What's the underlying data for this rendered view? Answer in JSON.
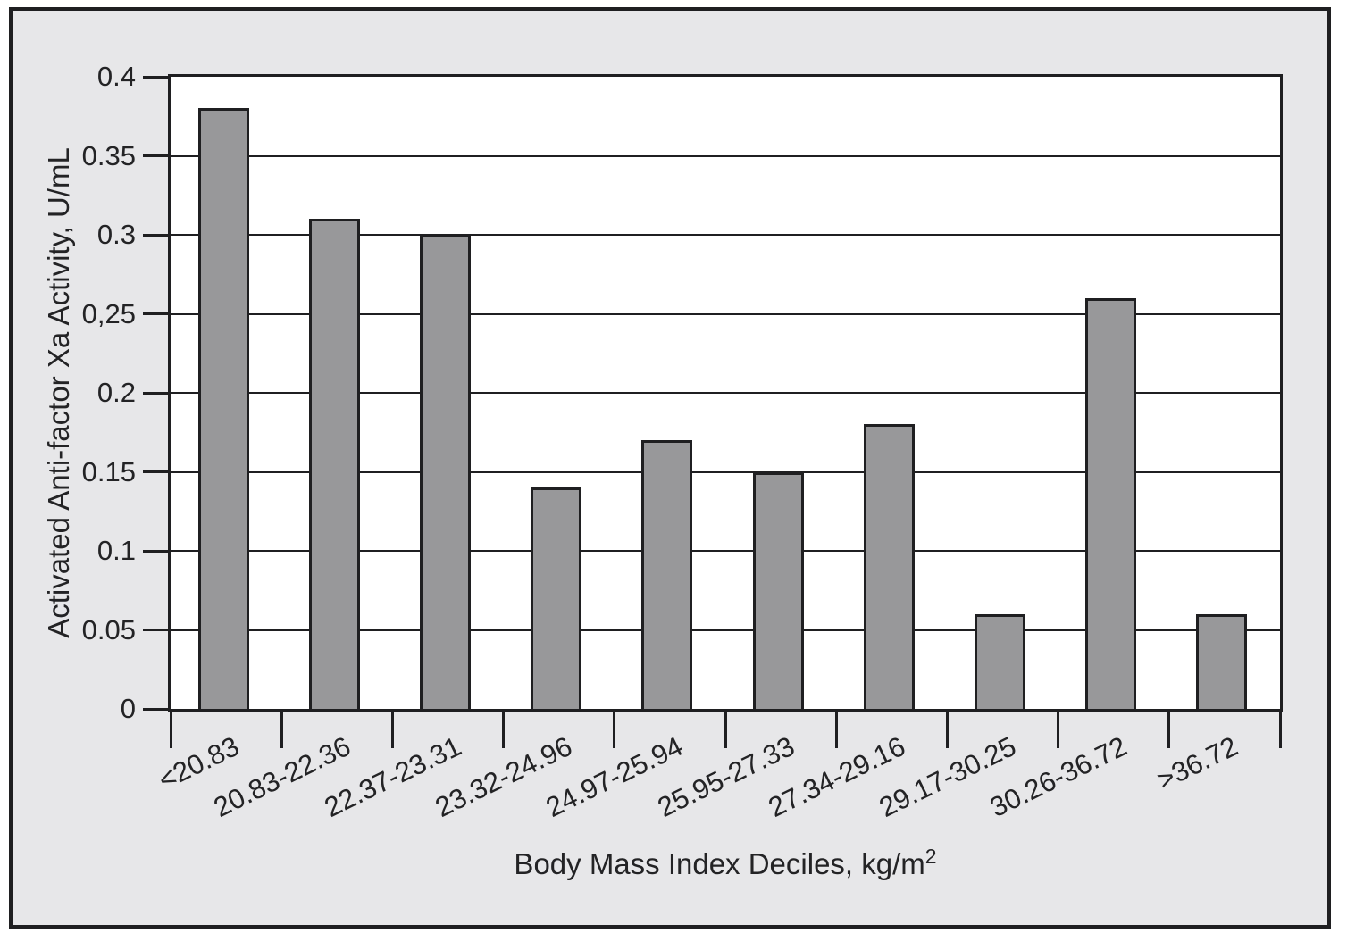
{
  "chart_data": {
    "type": "bar",
    "title": "",
    "categories": [
      "<20.83",
      "20.83-22.36",
      "22.37-23.31",
      "23.32-24.96",
      "24.97-25.94",
      "25.95-27.33",
      "27.34-29.16",
      "29.17-30.25",
      "30.26-36.72",
      ">36.72"
    ],
    "values": [
      0.38,
      0.31,
      0.3,
      0.14,
      0.17,
      0.15,
      0.18,
      0.06,
      0.26,
      0.06
    ],
    "ylabel": "Activated Anti-factor Xa Activity, U/mL",
    "xlabel_main": "Body Mass Index Deciles, kg/m",
    "xlabel_sup": "2",
    "ylim": [
      0,
      0.4
    ],
    "yticks": [
      {
        "value": 0,
        "label": "0"
      },
      {
        "value": 0.05,
        "label": "0.05"
      },
      {
        "value": 0.1,
        "label": "0.1"
      },
      {
        "value": 0.15,
        "label": "0.15"
      },
      {
        "value": 0.2,
        "label": "0.2"
      },
      {
        "value": 0.25,
        "label": "0,25"
      },
      {
        "value": 0.3,
        "label": "0.3"
      },
      {
        "value": 0.35,
        "label": "0.35"
      },
      {
        "value": 0.4,
        "label": "0.4"
      }
    ],
    "grid": "horizontal",
    "legend": "none",
    "colors": {
      "bar_fill": "#98989a",
      "bar_border": "#1f1f21",
      "figure_bg": "#e7e7e9",
      "plot_bg": "#ffffff",
      "line": "#1f1f21",
      "text": "#232325"
    }
  }
}
